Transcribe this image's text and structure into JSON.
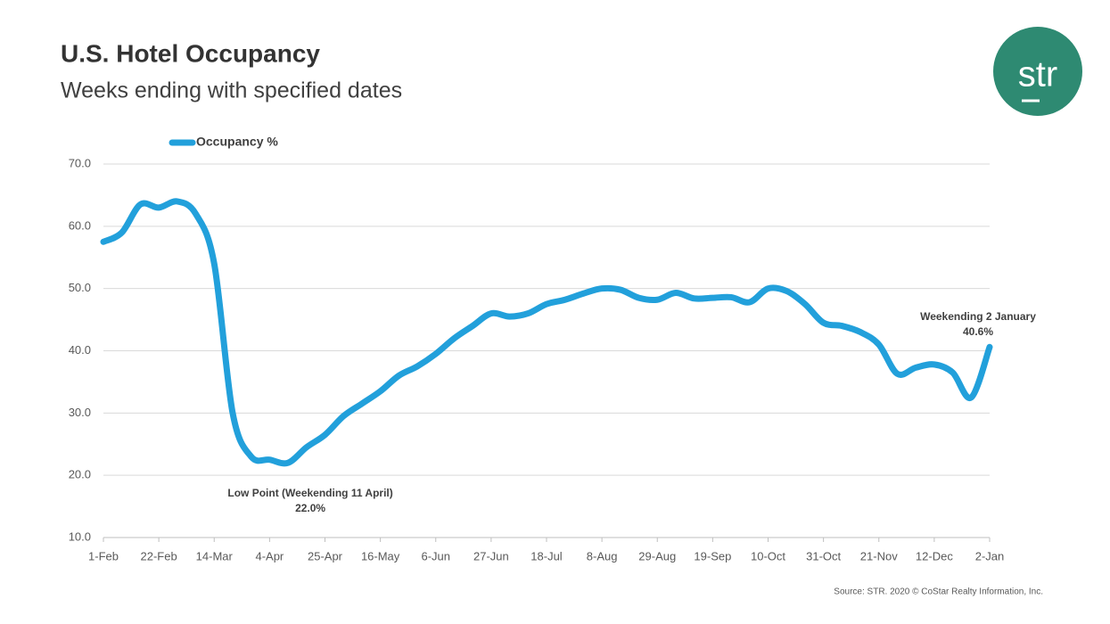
{
  "chart_data": {
    "type": "line",
    "title": "U.S. Hotel Occupancy",
    "subtitle": "Weeks ending with specified dates",
    "source": "Source: STR. 2020 © CoStar Realty Information, Inc.",
    "logo": "str",
    "categories": [
      "1-Feb",
      null,
      null,
      "22-Feb",
      null,
      null,
      "14-Mar",
      null,
      null,
      "4-Apr",
      null,
      null,
      "25-Apr",
      null,
      null,
      "16-May",
      null,
      null,
      "6-Jun",
      null,
      null,
      "27-Jun",
      null,
      null,
      "18-Jul",
      null,
      null,
      "8-Aug",
      null,
      null,
      "29-Aug",
      null,
      null,
      "19-Sep",
      null,
      null,
      "10-Oct",
      null,
      null,
      "31-Oct",
      null,
      null,
      "21-Nov",
      null,
      null,
      "12-Dec",
      null,
      null,
      "2-Jan"
    ],
    "series": [
      {
        "name": "Occupancy %",
        "color": "#22a0db",
        "values": [
          57.5,
          59,
          63.5,
          63,
          64,
          62,
          54,
          30,
          23,
          22.5,
          22.0,
          24.5,
          26.5,
          29.5,
          31.5,
          33.5,
          36,
          37.5,
          39.5,
          42,
          44,
          46,
          45.5,
          46,
          47.5,
          48.2,
          49.2,
          50,
          49.8,
          48.5,
          48.2,
          49.3,
          48.4,
          48.5,
          48.6,
          47.8,
          50,
          49.6,
          47.5,
          44.5,
          44,
          43,
          41,
          36.3,
          37.3,
          37.8,
          36.5,
          32.5,
          40.6
        ],
        "value_labels": [
          null,
          null,
          null,
          null,
          null,
          null,
          null,
          null,
          null,
          null,
          "22.0%",
          null,
          null,
          null,
          null,
          null,
          null,
          null,
          null,
          null,
          null,
          null,
          null,
          null,
          null,
          null,
          null,
          null,
          null,
          null,
          null,
          null,
          null,
          null,
          null,
          null,
          null,
          null,
          null,
          null,
          null,
          null,
          null,
          null,
          null,
          null,
          null,
          null,
          "40.6%"
        ]
      }
    ],
    "annotations": [
      {
        "index": 10,
        "text": "Low Point (Weekending 11 April)"
      },
      {
        "index": 48,
        "text": "Weekending 2 January"
      }
    ],
    "ylim": [
      10,
      70
    ],
    "yticks": [
      {
        "value": 10,
        "label": "10.0"
      },
      {
        "value": 20,
        "label": "20.0"
      },
      {
        "value": 30,
        "label": "30.0"
      },
      {
        "value": 40,
        "label": "40.0"
      },
      {
        "value": 50,
        "label": "50.0"
      },
      {
        "value": 60,
        "label": "60.0"
      },
      {
        "value": 70,
        "label": "70.0"
      }
    ],
    "grid": true,
    "legend": "top-left"
  }
}
